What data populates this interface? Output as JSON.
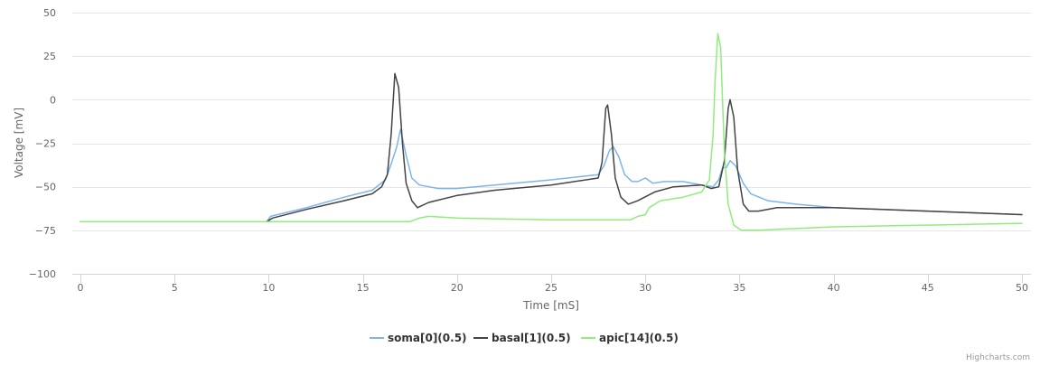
{
  "credits": "Highcharts.com",
  "chart_data": {
    "type": "line",
    "title": "",
    "xlabel": "Time [mS]",
    "ylabel": "Voltage [mV]",
    "xlim": [
      0,
      50
    ],
    "ylim": [
      -100,
      50
    ],
    "xticks": [
      0,
      5,
      10,
      15,
      20,
      25,
      30,
      35,
      40,
      45,
      50
    ],
    "yticks": [
      -100,
      -75,
      -50,
      -25,
      0,
      25,
      50
    ],
    "grid": "horizontal",
    "legend_position": "bottom-center",
    "series": [
      {
        "name": "soma[0](0.5)",
        "color": "#7cb5ec",
        "points": [
          [
            0,
            -70
          ],
          [
            5,
            -70
          ],
          [
            9.9,
            -70
          ],
          [
            10.1,
            -67
          ],
          [
            12,
            -62
          ],
          [
            14,
            -56
          ],
          [
            15.5,
            -52
          ],
          [
            16.2,
            -46
          ],
          [
            16.5,
            -37
          ],
          [
            16.8,
            -27
          ],
          [
            17.0,
            -17
          ],
          [
            17.3,
            -32
          ],
          [
            17.6,
            -45
          ],
          [
            18.0,
            -49
          ],
          [
            19,
            -51
          ],
          [
            20,
            -51
          ],
          [
            22,
            -49
          ],
          [
            25,
            -46
          ],
          [
            27.5,
            -43
          ],
          [
            27.8,
            -38
          ],
          [
            28.1,
            -29
          ],
          [
            28.3,
            -27
          ],
          [
            28.6,
            -33
          ],
          [
            28.9,
            -43
          ],
          [
            29.3,
            -47
          ],
          [
            29.6,
            -47
          ],
          [
            30.0,
            -45
          ],
          [
            30.4,
            -48
          ],
          [
            31,
            -47
          ],
          [
            32,
            -47
          ],
          [
            33,
            -49
          ],
          [
            33.6,
            -50
          ],
          [
            33.9,
            -46
          ],
          [
            34.1,
            -39
          ],
          [
            34.3,
            -39
          ],
          [
            34.5,
            -35
          ],
          [
            34.8,
            -38
          ],
          [
            35.2,
            -48
          ],
          [
            35.6,
            -54
          ],
          [
            36.5,
            -58
          ],
          [
            38,
            -60
          ],
          [
            40,
            -62
          ],
          [
            45,
            -64
          ],
          [
            50,
            -66
          ]
        ]
      },
      {
        "name": "basal[1](0.5)",
        "color": "#434348",
        "points": [
          [
            0,
            -70
          ],
          [
            5,
            -70
          ],
          [
            9.9,
            -70
          ],
          [
            10.2,
            -68
          ],
          [
            12,
            -63
          ],
          [
            14,
            -58
          ],
          [
            15.5,
            -54
          ],
          [
            16.0,
            -50
          ],
          [
            16.3,
            -43
          ],
          [
            16.5,
            -20
          ],
          [
            16.7,
            15
          ],
          [
            16.9,
            7
          ],
          [
            17.1,
            -25
          ],
          [
            17.3,
            -48
          ],
          [
            17.6,
            -58
          ],
          [
            17.9,
            -62
          ],
          [
            18.5,
            -59
          ],
          [
            20,
            -55
          ],
          [
            22,
            -52
          ],
          [
            25,
            -49
          ],
          [
            27.5,
            -45
          ],
          [
            27.7,
            -36
          ],
          [
            27.9,
            -5
          ],
          [
            28.0,
            -3
          ],
          [
            28.2,
            -20
          ],
          [
            28.4,
            -45
          ],
          [
            28.7,
            -56
          ],
          [
            29.1,
            -60
          ],
          [
            29.6,
            -58
          ],
          [
            30.5,
            -53
          ],
          [
            31.5,
            -50
          ],
          [
            33.0,
            -49
          ],
          [
            33.5,
            -51
          ],
          [
            33.9,
            -50
          ],
          [
            34.2,
            -35
          ],
          [
            34.4,
            -5
          ],
          [
            34.5,
            0
          ],
          [
            34.7,
            -10
          ],
          [
            34.9,
            -40
          ],
          [
            35.2,
            -60
          ],
          [
            35.5,
            -64
          ],
          [
            36,
            -64
          ],
          [
            37,
            -62
          ],
          [
            40,
            -62
          ],
          [
            45,
            -64
          ],
          [
            50,
            -66
          ]
        ]
      },
      {
        "name": "apic[14](0.5)",
        "color": "#90ed7d",
        "points": [
          [
            0,
            -70
          ],
          [
            10,
            -70
          ],
          [
            15,
            -70
          ],
          [
            17.5,
            -70
          ],
          [
            18,
            -68
          ],
          [
            18.5,
            -67
          ],
          [
            20,
            -68
          ],
          [
            25,
            -69
          ],
          [
            29.2,
            -69
          ],
          [
            29.6,
            -67
          ],
          [
            30.0,
            -66
          ],
          [
            30.2,
            -62
          ],
          [
            30.8,
            -58
          ],
          [
            32,
            -56
          ],
          [
            33,
            -53
          ],
          [
            33.4,
            -46
          ],
          [
            33.6,
            -20
          ],
          [
            33.7,
            10
          ],
          [
            33.85,
            38
          ],
          [
            34.0,
            30
          ],
          [
            34.1,
            0
          ],
          [
            34.2,
            -30
          ],
          [
            34.4,
            -60
          ],
          [
            34.7,
            -72
          ],
          [
            35.1,
            -75
          ],
          [
            36,
            -75
          ],
          [
            38,
            -74
          ],
          [
            40,
            -73
          ],
          [
            45,
            -72
          ],
          [
            50,
            -71
          ]
        ]
      }
    ]
  }
}
